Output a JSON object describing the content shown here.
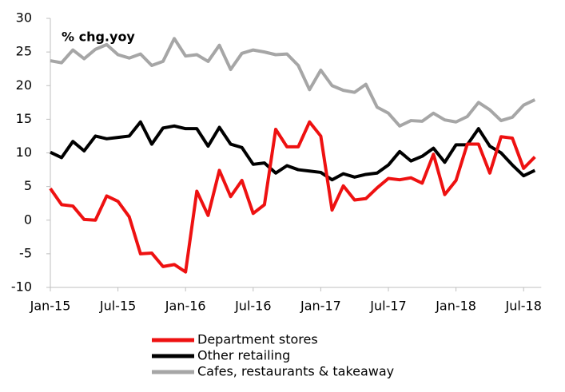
{
  "chart_data": {
    "type": "line",
    "annotation": "% chg.yoy",
    "categories": [
      "Jan-15",
      null,
      null,
      null,
      null,
      null,
      "Jul-15",
      null,
      null,
      null,
      null,
      null,
      "Jan-16",
      null,
      null,
      null,
      null,
      null,
      "Jul-16",
      null,
      null,
      null,
      null,
      null,
      "Jan-17",
      null,
      null,
      null,
      null,
      null,
      "Jul-17",
      null,
      null,
      null,
      null,
      null,
      "Jan-18",
      null,
      null,
      null,
      null,
      null,
      "Jul-18",
      null
    ],
    "series": [
      {
        "name": "Department stores",
        "color": "#ee1111",
        "values": [
          4.7,
          2.3,
          2.1,
          0.1,
          0.0,
          3.6,
          2.8,
          0.5,
          -5.0,
          -4.9,
          -6.9,
          -6.6,
          -7.7,
          4.3,
          0.7,
          7.4,
          3.5,
          5.9,
          1.0,
          2.3,
          13.5,
          10.9,
          10.9,
          14.6,
          12.5,
          1.5,
          5.1,
          3.0,
          3.2,
          4.8,
          6.2,
          6.0,
          6.3,
          5.5,
          9.8,
          3.8,
          5.9,
          11.3,
          11.3,
          7.0,
          12.4,
          12.2,
          7.7,
          9.4
        ]
      },
      {
        "name": "Other retailing",
        "color": "#000000",
        "values": [
          10.1,
          9.3,
          11.7,
          10.3,
          12.5,
          12.1,
          12.3,
          12.5,
          14.6,
          11.3,
          13.7,
          14.0,
          13.6,
          13.6,
          11.0,
          13.8,
          11.3,
          10.8,
          8.3,
          8.5,
          7.0,
          8.1,
          7.5,
          7.3,
          7.1,
          6.0,
          6.9,
          6.4,
          6.8,
          7.0,
          8.2,
          10.2,
          8.8,
          9.5,
          10.7,
          8.6,
          11.2,
          11.2,
          13.6,
          11.0,
          10.0,
          8.2,
          6.6,
          7.4
        ]
      },
      {
        "name": "Cafes, restaurants & takeaway",
        "color": "#a6a6a6",
        "values": [
          23.7,
          23.4,
          25.3,
          24.0,
          25.4,
          26.1,
          24.6,
          24.1,
          24.7,
          23.0,
          23.6,
          27.0,
          24.4,
          24.6,
          23.6,
          26.0,
          22.4,
          24.8,
          25.3,
          25.0,
          24.6,
          24.7,
          23.0,
          19.4,
          22.3,
          20.0,
          19.3,
          19.0,
          20.2,
          16.8,
          15.9,
          14.0,
          14.8,
          14.7,
          15.9,
          14.9,
          14.6,
          15.4,
          17.5,
          16.4,
          14.8,
          15.3,
          17.1,
          17.9
        ]
      }
    ],
    "ylim": [
      -10,
      30
    ],
    "yticks": [
      -10,
      -5,
      0,
      5,
      10,
      15,
      20,
      25,
      30
    ],
    "grid": false
  }
}
